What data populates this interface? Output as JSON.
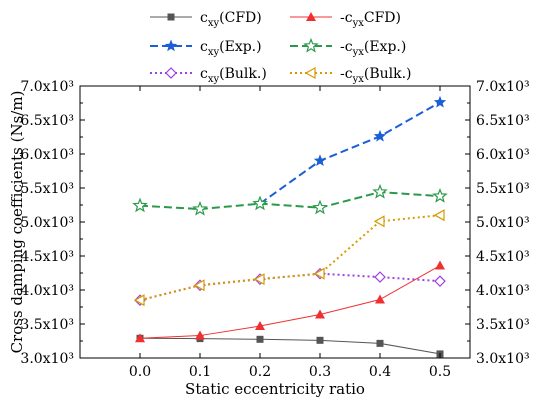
{
  "chart_data": {
    "type": "line",
    "x": [
      0.0,
      0.1,
      0.2,
      0.3,
      0.4,
      0.5
    ],
    "x_tick_labels": [
      "0.0",
      "0.1",
      "0.2",
      "0.3",
      "0.4",
      "0.5"
    ],
    "xlim": [
      -0.1,
      0.55
    ],
    "ylim": [
      3000,
      7000
    ],
    "y_ticks": [
      3000,
      3500,
      4000,
      4500,
      5000,
      5500,
      6000,
      6500,
      7000
    ],
    "y_tick_labels": [
      "3.0x10³",
      "3.5x10³",
      "4.0x10³",
      "4.5x10³",
      "5.0x10³",
      "5.5x10³",
      "6.0x10³",
      "6.5x10³",
      "7.0x10³"
    ],
    "xlabel": "Static eccentricity ratio",
    "ylabel": "Cross damping coefficients (Ns/m)",
    "grid": false,
    "legend_position": "top",
    "series": [
      {
        "name": "cxy(CFD)",
        "legend_label": "c",
        "legend_sub": "xy",
        "legend_suffix": "(CFD)",
        "x": [
          0.0,
          0.1,
          0.2,
          0.3,
          0.4,
          0.5
        ],
        "values": [
          3290,
          3285,
          3275,
          3260,
          3215,
          3060
        ],
        "color": "#555555",
        "dash": "",
        "width": 1,
        "marker": "square"
      },
      {
        "name": "-cyx(CFD)",
        "legend_label": "-c",
        "legend_sub": "yx",
        "legend_suffix": "CFD)",
        "x": [
          0.0,
          0.1,
          0.2,
          0.3,
          0.4,
          0.5
        ],
        "values": [
          3290,
          3330,
          3470,
          3640,
          3860,
          4360
        ],
        "color": "#f03030",
        "dash": "",
        "width": 1,
        "marker": "triangle"
      },
      {
        "name": "cxy(Exp.)",
        "legend_label": "c",
        "legend_sub": "xy",
        "legend_suffix": "(Exp.)",
        "x": [
          0.2,
          0.3,
          0.4,
          0.5
        ],
        "values": [
          5270,
          5900,
          6260,
          6760
        ],
        "color": "#1a5fd6",
        "dash": "8,4",
        "width": 2,
        "marker": "star-filled"
      },
      {
        "name": "-cyx(Exp.)",
        "legend_label": "-c",
        "legend_sub": "yx",
        "legend_suffix": "(Exp.)",
        "x": [
          0.0,
          0.1,
          0.2,
          0.3,
          0.4,
          0.5
        ],
        "values": [
          5240,
          5190,
          5270,
          5210,
          5440,
          5380
        ],
        "color": "#2a9a4a",
        "dash": "8,4",
        "width": 2,
        "marker": "star-open"
      },
      {
        "name": "cxy(Bulk.)",
        "legend_label": "c",
        "legend_sub": "xy",
        "legend_suffix": "(Bulk.)",
        "x": [
          0.0,
          0.1,
          0.2,
          0.3,
          0.4,
          0.5
        ],
        "values": [
          3850,
          4070,
          4160,
          4240,
          4190,
          4130
        ],
        "color": "#a040e0",
        "dash": "2,3",
        "width": 2,
        "marker": "diamond-open"
      },
      {
        "name": "-cyx(Bulk.)",
        "legend_label": "-c",
        "legend_sub": "yx",
        "legend_suffix": "(Bulk.)",
        "x": [
          0.0,
          0.1,
          0.2,
          0.3,
          0.4,
          0.5
        ],
        "values": [
          3850,
          4070,
          4160,
          4240,
          5010,
          5100
        ],
        "color": "#d89a00",
        "dash": "2,3",
        "width": 2,
        "marker": "triangle-left-open"
      }
    ]
  }
}
